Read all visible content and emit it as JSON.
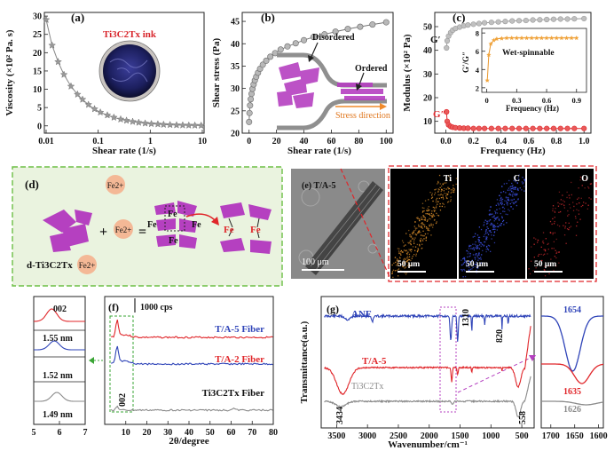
{
  "panel_a": {
    "label": "(a)",
    "inset_label": "Ti3C2Tx ink",
    "chart_data": {
      "type": "line",
      "xscale": "log",
      "xlabel": "Shear rate (1/s)",
      "ylabel": "Viscosity (×10² Pa. s)",
      "xlim": [
        0.01,
        10
      ],
      "ylim": [
        -2,
        31
      ],
      "xticks": [
        "0.01",
        "0.1",
        "1",
        "10"
      ],
      "yticks": [
        "0",
        "5",
        "10",
        "15",
        "20",
        "25",
        "30"
      ],
      "x": [
        0.01,
        0.013,
        0.017,
        0.022,
        0.03,
        0.04,
        0.05,
        0.065,
        0.085,
        0.11,
        0.15,
        0.2,
        0.27,
        0.35,
        0.46,
        0.6,
        0.8,
        1.05,
        1.4,
        1.8,
        2.4,
        3.2,
        4.2,
        5.5,
        7.2,
        9.5
      ],
      "y": [
        29,
        22,
        17.5,
        14,
        10.8,
        8.6,
        7.2,
        5.8,
        4.6,
        3.7,
        2.9,
        2.3,
        1.8,
        1.45,
        1.15,
        0.9,
        0.7,
        0.55,
        0.45,
        0.35,
        0.28,
        0.22,
        0.18,
        0.14,
        0.11,
        0.09
      ]
    }
  },
  "panel_b": {
    "label": "(b)",
    "annotations": {
      "disordered": "Disordered",
      "ordered": "Ordered",
      "stress_direction": "Stress direction"
    },
    "chart_data": {
      "type": "scatter",
      "xlabel": "Shear rate (1/s)",
      "ylabel": "Shear stress (Pa)",
      "xlim": [
        -5,
        105
      ],
      "ylim": [
        20,
        47
      ],
      "xticks": [
        "0",
        "20",
        "40",
        "60",
        "80",
        "100"
      ],
      "yticks": [
        "20",
        "25",
        "30",
        "35",
        "40",
        "45"
      ],
      "x": [
        0,
        0.3,
        0.7,
        1.2,
        1.8,
        2.5,
        3.3,
        4.2,
        5.2,
        6.5,
        8,
        10,
        12.5,
        15.5,
        19,
        23,
        28,
        34,
        40,
        47,
        55,
        63,
        72,
        81,
        90,
        100
      ],
      "y": [
        22.5,
        24.5,
        26.2,
        27.6,
        28.8,
        29.9,
        30.9,
        31.8,
        32.6,
        33.5,
        34.4,
        35.3,
        36.2,
        37.1,
        37.9,
        38.7,
        39.4,
        40.1,
        40.8,
        41.5,
        42.1,
        42.7,
        43.3,
        43.8,
        44.3,
        44.8
      ]
    }
  },
  "panel_c": {
    "label": "(c)",
    "chart_data": {
      "type": "line",
      "xlabel": "Frequency (Hz)",
      "ylabel": "Modulus (×10² Pa)",
      "xlim": [
        -0.08,
        1.05
      ],
      "ylim": [
        5,
        56
      ],
      "xticks": [
        "0.0",
        "0.2",
        "0.4",
        "0.6",
        "0.8",
        "1.0"
      ],
      "yticks": [
        "10",
        "20",
        "30",
        "40",
        "50"
      ],
      "series": [
        {
          "name": "G′",
          "color": "#9a9a9a",
          "x": [
            0.005,
            0.01,
            0.02,
            0.035,
            0.05,
            0.07,
            0.1,
            0.13,
            0.16,
            0.2,
            0.24,
            0.28,
            0.33,
            0.38,
            0.43,
            0.48,
            0.53,
            0.58,
            0.63,
            0.68,
            0.73,
            0.78,
            0.83,
            0.88,
            0.93,
            1.0
          ],
          "y": [
            41,
            44,
            46,
            47.5,
            48.5,
            49.2,
            49.8,
            50.3,
            50.7,
            51,
            51.3,
            51.6,
            51.8,
            52,
            52.2,
            52.4,
            52.5,
            52.6,
            52.8,
            52.9,
            53,
            53.1,
            53.2,
            53.2,
            53.3,
            53.4
          ]
        },
        {
          "name": "G″",
          "color": "#e0262a",
          "x": [
            0.005,
            0.01,
            0.02,
            0.035,
            0.05,
            0.07,
            0.1,
            0.13,
            0.16,
            0.2,
            0.24,
            0.28,
            0.33,
            0.38,
            0.43,
            0.48,
            0.53,
            0.58,
            0.63,
            0.68,
            0.73,
            0.78,
            0.83,
            0.88,
            0.93,
            1.0
          ],
          "y": [
            14,
            10,
            8.5,
            7.8,
            7.5,
            7.3,
            7.2,
            7.1,
            7.1,
            7,
            7,
            7,
            7,
            7,
            7,
            7,
            7,
            7,
            7,
            7,
            7,
            7,
            7,
            7,
            7,
            7
          ]
        }
      ],
      "inset": {
        "title": "Wet-spinnable",
        "xlabel": "Frequency (Hz)",
        "ylabel": "G′/G″",
        "xlim": [
          -0.05,
          1.0
        ],
        "ylim": [
          1.5,
          8.5
        ],
        "xticks": [
          "0",
          "0.3",
          "0.6",
          "0.9"
        ],
        "yticks": [
          "2",
          "4",
          "6",
          "8"
        ],
        "x": [
          0.005,
          0.02,
          0.04,
          0.07,
          0.1,
          0.15,
          0.2,
          0.25,
          0.3,
          0.35,
          0.4,
          0.45,
          0.5,
          0.55,
          0.6,
          0.65,
          0.7,
          0.75,
          0.8,
          0.85,
          0.9
        ],
        "y": [
          2.8,
          5.6,
          6.8,
          7.2,
          7.35,
          7.4,
          7.45,
          7.45,
          7.45,
          7.45,
          7.45,
          7.45,
          7.45,
          7.45,
          7.45,
          7.45,
          7.45,
          7.45,
          7.45,
          7.45,
          7.45
        ]
      }
    }
  },
  "panel_d": {
    "label": "(d)",
    "ion": "Fe2+",
    "fe": "Fe",
    "plus": "+",
    "equals": "=",
    "caption": "d-Ti3C2Tx"
  },
  "panel_e": {
    "label": "(e)",
    "sample": "T/A-5",
    "scale_main": "100 μm",
    "maps": [
      {
        "element": "Ti",
        "scale": "50 μm",
        "color": "#d48a2a"
      },
      {
        "element": "C",
        "scale": "50 μm",
        "color": "#3b4fe0"
      },
      {
        "element": "O",
        "scale": "50 μm",
        "color": "#c0282c"
      }
    ]
  },
  "panel_f": {
    "label": "(f)",
    "scalebar": "1000 cps",
    "peak_label": "002",
    "zoom_peak": "002",
    "zoom_spacings": [
      "1.55 nm",
      "1.52 nm",
      "1.49 nm"
    ],
    "zoom_xticks": [
      "5",
      "6",
      "7"
    ],
    "chart_data": {
      "type": "line",
      "xlabel": "2θ/degree",
      "xlim": [
        0,
        80
      ],
      "xticks": [
        "10",
        "20",
        "30",
        "40",
        "50",
        "60",
        "70",
        "80"
      ],
      "series": [
        {
          "name": "T/A-5 Fiber",
          "color": "#e0262a"
        },
        {
          "name": "T/A-2 Fiber",
          "color": "#2f44b8"
        },
        {
          "name": "Ti3C2Tx Fiber",
          "color": "#8a8a8a"
        }
      ]
    }
  },
  "panel_g": {
    "label": "(g)",
    "peaks": {
      "p1310": "1310",
      "p820": "820",
      "p3434": "3434",
      "p558": "558"
    },
    "zoom_values": [
      "1654",
      "1635",
      "1626"
    ],
    "zoom_xticks": [
      "1700",
      "1650",
      "1600"
    ],
    "chart_data": {
      "type": "line",
      "xlabel": "Wavenumber/cm⁻¹",
      "ylabel": "Transmittance(a.u.)",
      "xlim": [
        3750,
        300
      ],
      "xticks": [
        "3500",
        "3000",
        "2500",
        "2000",
        "1500",
        "1000",
        "500"
      ],
      "series": [
        {
          "name": "ANF",
          "color": "#2f44b8"
        },
        {
          "name": "T/A-5",
          "color": "#e0262a"
        },
        {
          "name": "Ti3C2Tx",
          "color": "#8a8a8a"
        }
      ]
    }
  }
}
